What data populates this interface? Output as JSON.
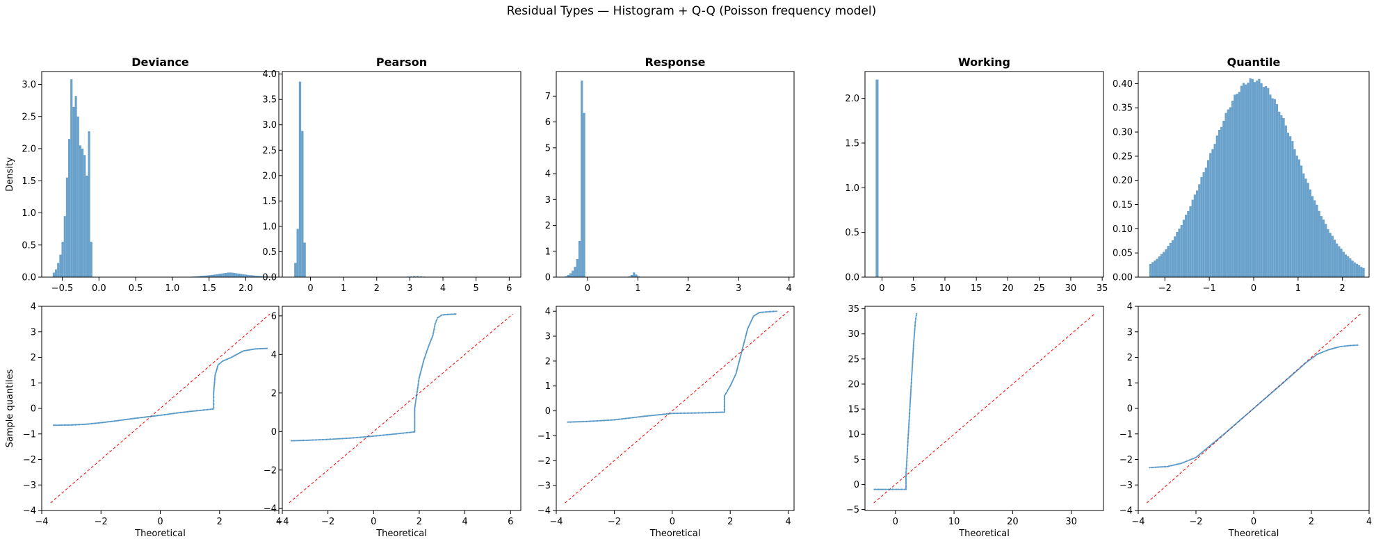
{
  "figure": {
    "title": "Residual Types — Histogram + Q-Q (Poisson frequency model)"
  },
  "colors": {
    "hist": "#6aa2cc",
    "points": "#1f77b4",
    "ref_line": "#ff0000"
  },
  "chart_data": [
    {
      "type": "bar",
      "panel": "histogram",
      "title": "Deviance",
      "xlabel": "",
      "ylabel": "Density",
      "xlim": [
        -0.78,
        2.45
      ],
      "ylim": [
        0,
        3.2
      ],
      "xticks": [
        -0.5,
        0.0,
        0.5,
        1.0,
        1.5,
        2.0
      ],
      "yticks": [
        0.0,
        0.5,
        1.0,
        1.5,
        2.0,
        2.5,
        3.0
      ],
      "xtick_labels": [
        "−0.5",
        "0.0",
        "0.5",
        "1.0",
        "1.5",
        "2.0"
      ],
      "ytick_labels": [
        "0.0",
        "0.5",
        "1.0",
        "1.5",
        "2.0",
        "2.5",
        "3.0"
      ],
      "bin_width": 0.03,
      "bin_starts": [
        -0.63,
        -0.6,
        -0.57,
        -0.54,
        -0.51,
        -0.48,
        -0.45,
        -0.42,
        -0.39,
        -0.36,
        -0.33,
        -0.3,
        -0.27,
        -0.24,
        -0.21,
        -0.18,
        -0.15,
        -0.12,
        -0.09,
        1.2,
        1.23,
        1.26,
        1.29,
        1.32,
        1.35,
        1.38,
        1.41,
        1.44,
        1.47,
        1.5,
        1.53,
        1.56,
        1.59,
        1.62,
        1.65,
        1.68,
        1.71,
        1.74,
        1.77,
        1.8,
        1.83,
        1.86,
        1.89,
        1.92,
        1.95,
        1.98,
        2.01,
        2.04,
        2.07,
        2.1,
        2.13,
        2.16,
        2.19,
        2.22,
        2.25,
        2.28,
        2.31,
        2.34
      ],
      "values": [
        0.07,
        0.12,
        0.22,
        0.35,
        0.55,
        0.95,
        1.55,
        2.15,
        3.08,
        2.65,
        2.82,
        2.5,
        2.05,
        2.0,
        1.9,
        1.58,
        2.27,
        0.55,
        0.0,
        0.003,
        0.005,
        0.008,
        0.01,
        0.012,
        0.015,
        0.02,
        0.022,
        0.025,
        0.028,
        0.03,
        0.035,
        0.04,
        0.045,
        0.05,
        0.055,
        0.06,
        0.065,
        0.07,
        0.072,
        0.07,
        0.065,
        0.06,
        0.055,
        0.05,
        0.045,
        0.04,
        0.035,
        0.03,
        0.028,
        0.025,
        0.022,
        0.02,
        0.018,
        0.015,
        0.012,
        0.01,
        0.008,
        0.005
      ]
    },
    {
      "type": "bar",
      "panel": "histogram",
      "title": "Pearson",
      "xlabel": "",
      "ylabel": "",
      "xlim": [
        -0.85,
        6.35
      ],
      "ylim": [
        0,
        4.05
      ],
      "xticks": [
        0,
        1,
        2,
        3,
        4,
        5,
        6
      ],
      "yticks": [
        0.0,
        0.5,
        1.0,
        1.5,
        2.0,
        2.5,
        3.0,
        3.5,
        4.0
      ],
      "xtick_labels": [
        "0",
        "1",
        "2",
        "3",
        "4",
        "5",
        "6"
      ],
      "ytick_labels": [
        "0.0",
        "0.5",
        "1.0",
        "1.5",
        "2.0",
        "2.5",
        "3.0",
        "3.5",
        "4.0"
      ],
      "bin_width": 0.07,
      "bin_starts": [
        -0.49,
        -0.42,
        -0.35,
        -0.28,
        -0.21,
        -0.14,
        -0.07,
        0.0,
        2.8,
        2.9,
        3.0,
        3.1,
        3.2,
        3.3,
        3.4,
        3.5
      ],
      "values": [
        0.28,
        0.95,
        3.85,
        2.88,
        0.68,
        0.0,
        0.0,
        0.0,
        0.005,
        0.01,
        0.015,
        0.02,
        0.02,
        0.015,
        0.01,
        0.005
      ]
    },
    {
      "type": "bar",
      "panel": "histogram",
      "title": "Response",
      "xlabel": "",
      "ylabel": "",
      "xlim": [
        -0.62,
        4.1
      ],
      "ylim": [
        0,
        7.95
      ],
      "xticks": [
        0,
        1,
        2,
        3,
        4
      ],
      "yticks": [
        0,
        1,
        2,
        3,
        4,
        5,
        6,
        7
      ],
      "xtick_labels": [
        "0",
        "1",
        "2",
        "3",
        "4"
      ],
      "ytick_labels": [
        "0",
        "1",
        "2",
        "3",
        "4",
        "5",
        "6",
        "7"
      ],
      "bin_width": 0.045,
      "bin_starts": [
        -0.45,
        -0.405,
        -0.36,
        -0.315,
        -0.27,
        -0.225,
        -0.18,
        -0.135,
        -0.09,
        0.81,
        0.855,
        0.9,
        0.945,
        0.99
      ],
      "values": [
        0.03,
        0.08,
        0.15,
        0.25,
        0.4,
        0.7,
        1.4,
        7.6,
        6.35,
        0.03,
        0.08,
        0.18,
        0.1,
        0.03
      ]
    },
    {
      "type": "bar",
      "panel": "histogram",
      "title": "Working",
      "xlabel": "",
      "ylabel": "",
      "xlim": [
        -2.7,
        35.2
      ],
      "ylim": [
        0,
        2.3
      ],
      "xticks": [
        0,
        5,
        10,
        15,
        20,
        25,
        30,
        35
      ],
      "yticks": [
        0.0,
        0.5,
        1.0,
        1.5,
        2.0
      ],
      "xtick_labels": [
        "0",
        "5",
        "10",
        "15",
        "20",
        "25",
        "30",
        "35"
      ],
      "ytick_labels": [
        "0.0",
        "0.5",
        "1.0",
        "1.5",
        "2.0"
      ],
      "bin_width": 0.45,
      "bin_starts": [
        -1.0
      ],
      "values": [
        2.21
      ]
    },
    {
      "type": "bar",
      "panel": "histogram",
      "title": "Quantile",
      "xlabel": "",
      "ylabel": "",
      "xlim": [
        -2.6,
        2.6
      ],
      "ylim": [
        0,
        0.425
      ],
      "xticks": [
        -2,
        -1,
        0,
        1,
        2
      ],
      "yticks": [
        0.0,
        0.05,
        0.1,
        0.15,
        0.2,
        0.25,
        0.3,
        0.35,
        0.4
      ],
      "xtick_labels": [
        "−2",
        "−1",
        "0",
        "1",
        "2"
      ],
      "ytick_labels": [
        "0.00",
        "0.05",
        "0.10",
        "0.15",
        "0.20",
        "0.25",
        "0.30",
        "0.35",
        "0.40"
      ],
      "distribution": "normal",
      "range": [
        -2.35,
        2.5
      ],
      "bins": 97,
      "peak": 0.408
    },
    {
      "type": "scatter",
      "panel": "qq",
      "title": "",
      "xlabel": "Theoretical",
      "ylabel": "Sample quantiles",
      "xlim": [
        -4.0,
        4.0
      ],
      "ylim": [
        -4.0,
        4.0
      ],
      "xticks": [
        -4,
        -2,
        0,
        2,
        4
      ],
      "yticks": [
        -4,
        -3,
        -2,
        -1,
        0,
        1,
        2,
        3,
        4
      ],
      "xtick_labels": [
        "−4",
        "−2",
        "0",
        "2",
        "4"
      ],
      "ytick_labels": [
        "−4",
        "−3",
        "−2",
        "−1",
        "0",
        "1",
        "2",
        "3",
        "4"
      ],
      "reference_line": [
        -3.7,
        3.7
      ],
      "x": [
        -3.6,
        -3.0,
        -2.5,
        -2.0,
        -1.5,
        -1.0,
        -0.5,
        0.0,
        0.5,
        1.0,
        1.5,
        1.8,
        1.8,
        1.85,
        1.95,
        2.1,
        2.4,
        2.8,
        3.2,
        3.6
      ],
      "y": [
        -0.66,
        -0.65,
        -0.62,
        -0.56,
        -0.49,
        -0.41,
        -0.34,
        -0.27,
        -0.19,
        -0.12,
        -0.06,
        -0.02,
        0.6,
        1.3,
        1.7,
        1.85,
        2.0,
        2.25,
        2.33,
        2.35
      ]
    },
    {
      "type": "scatter",
      "panel": "qq",
      "title": "",
      "xlabel": "Theoretical",
      "ylabel": "",
      "xlim": [
        -4.0,
        6.45
      ],
      "ylim": [
        -4.1,
        6.5
      ],
      "xticks": [
        -4,
        -2,
        0,
        2,
        4,
        6
      ],
      "yticks": [
        -4,
        -2,
        0,
        2,
        4,
        6
      ],
      "xtick_labels": [
        "−4",
        "−2",
        "0",
        "2",
        "4",
        "6"
      ],
      "ytick_labels": [
        "−4",
        "−2",
        "0",
        "2",
        "4",
        "6"
      ],
      "reference_line": [
        -3.7,
        6.1
      ],
      "x": [
        -3.6,
        -3.0,
        -2.0,
        -1.0,
        0.0,
        1.0,
        1.8,
        1.8,
        2.0,
        2.2,
        2.4,
        2.6,
        2.7,
        2.8,
        3.0,
        3.3,
        3.6
      ],
      "y": [
        -0.48,
        -0.46,
        -0.41,
        -0.34,
        -0.24,
        -0.12,
        -0.02,
        1.2,
        2.8,
        3.7,
        4.4,
        5.0,
        5.6,
        5.9,
        6.05,
        6.08,
        6.1
      ]
    },
    {
      "type": "scatter",
      "panel": "qq",
      "title": "",
      "xlabel": "Theoretical",
      "ylabel": "",
      "xlim": [
        -4.0,
        4.2
      ],
      "ylim": [
        -4.0,
        4.2
      ],
      "xticks": [
        -4,
        -2,
        0,
        2,
        4
      ],
      "yticks": [
        -4,
        -3,
        -2,
        -1,
        0,
        1,
        2,
        3,
        4
      ],
      "xtick_labels": [
        "−4",
        "−2",
        "0",
        "2",
        "4"
      ],
      "ytick_labels": [
        "−4",
        "−3",
        "−2",
        "−1",
        "0",
        "1",
        "2",
        "3",
        "4"
      ],
      "reference_line": [
        -3.7,
        4.0
      ],
      "x": [
        -3.6,
        -3.0,
        -2.0,
        -1.0,
        0.0,
        1.0,
        1.8,
        1.8,
        2.0,
        2.2,
        2.4,
        2.6,
        2.8,
        3.0,
        3.3,
        3.6
      ],
      "y": [
        -0.45,
        -0.43,
        -0.36,
        -0.22,
        -0.1,
        -0.08,
        -0.05,
        0.6,
        1.0,
        1.5,
        2.4,
        3.3,
        3.8,
        3.95,
        3.98,
        4.0
      ]
    },
    {
      "type": "scatter",
      "panel": "qq",
      "title": "",
      "xlabel": "Theoretical",
      "ylabel": "",
      "xlim": [
        -5.2,
        35.5
      ],
      "ylim": [
        -5.2,
        35.5
      ],
      "xticks": [
        0,
        10,
        20,
        30
      ],
      "yticks": [
        -5,
        0,
        5,
        10,
        15,
        20,
        25,
        30,
        35
      ],
      "xtick_labels": [
        "0",
        "10",
        "20",
        "30"
      ],
      "ytick_labels": [
        "−5",
        "0",
        "5",
        "10",
        "15",
        "20",
        "25",
        "30",
        "35"
      ],
      "reference_line": [
        -3.7,
        34.0
      ],
      "x": [
        -3.6,
        -2.0,
        0.0,
        1.0,
        1.8,
        1.8,
        2.0,
        2.2,
        2.5,
        2.8,
        3.1,
        3.4,
        3.6
      ],
      "y": [
        -1.0,
        -1.0,
        -1.0,
        -1.0,
        -1.0,
        2.0,
        6.0,
        10.0,
        16.0,
        22.0,
        28.0,
        32.5,
        34.0
      ]
    },
    {
      "type": "scatter",
      "panel": "qq",
      "title": "",
      "xlabel": "Theoretical",
      "ylabel": "",
      "xlim": [
        -4.0,
        4.0
      ],
      "ylim": [
        -4.0,
        4.0
      ],
      "xticks": [
        -4,
        -2,
        0,
        2,
        4
      ],
      "yticks": [
        -4,
        -3,
        -2,
        -1,
        0,
        1,
        2,
        3,
        4
      ],
      "xtick_labels": [
        "−4",
        "−2",
        "0",
        "2",
        "4"
      ],
      "ytick_labels": [
        "−4",
        "−3",
        "−2",
        "−1",
        "0",
        "1",
        "2",
        "3",
        "4"
      ],
      "reference_line": [
        -3.7,
        3.7
      ],
      "x": [
        -3.6,
        -3.0,
        -2.5,
        -2.0,
        -1.0,
        0.0,
        1.0,
        1.8,
        2.2,
        2.6,
        3.0,
        3.3,
        3.6
      ],
      "y": [
        -2.32,
        -2.28,
        -2.15,
        -1.92,
        -0.98,
        0.0,
        0.98,
        1.78,
        2.12,
        2.3,
        2.42,
        2.46,
        2.48
      ]
    }
  ]
}
